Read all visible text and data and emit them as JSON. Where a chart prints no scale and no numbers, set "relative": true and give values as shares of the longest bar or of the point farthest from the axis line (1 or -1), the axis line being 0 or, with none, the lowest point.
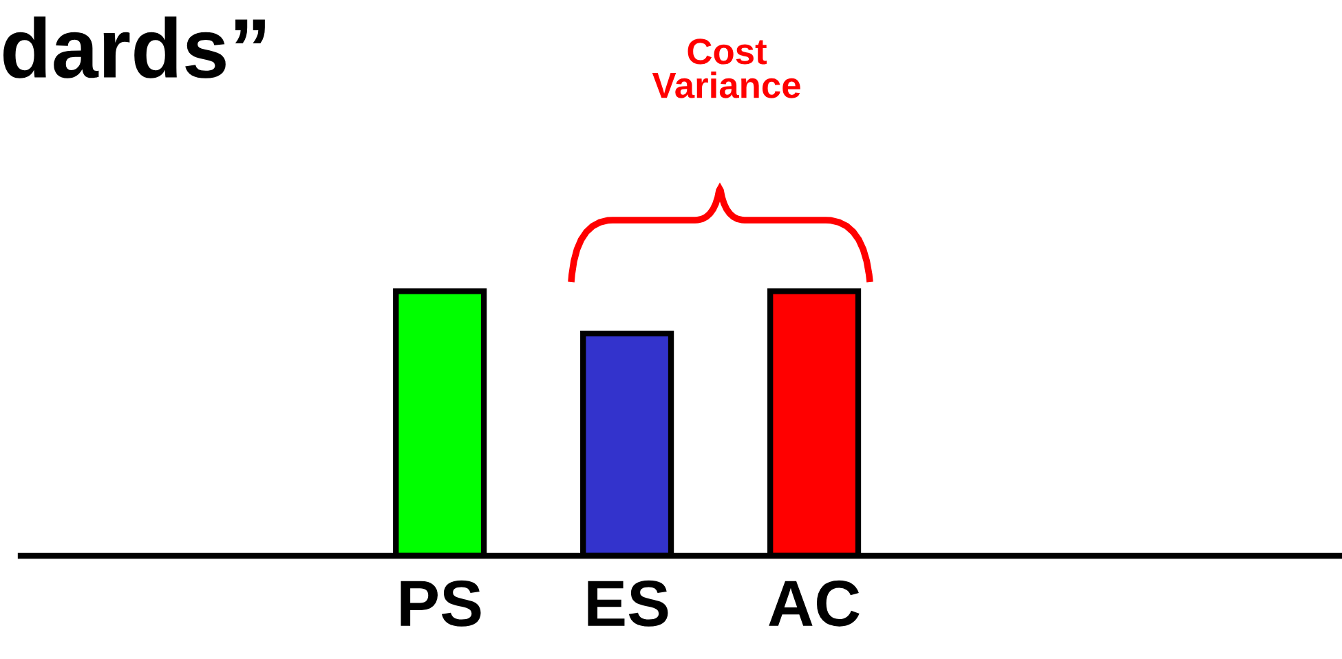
{
  "chart_data": {
    "type": "bar",
    "title": "dards”",
    "relative": true,
    "categories": [
      "PS",
      "ES",
      "AC"
    ],
    "values": [
      1,
      0.84,
      1
    ],
    "colors": [
      "#00ff00",
      "#3333cc",
      "#ff0000"
    ],
    "annotations": [
      "Cost\nVariance"
    ]
  }
}
